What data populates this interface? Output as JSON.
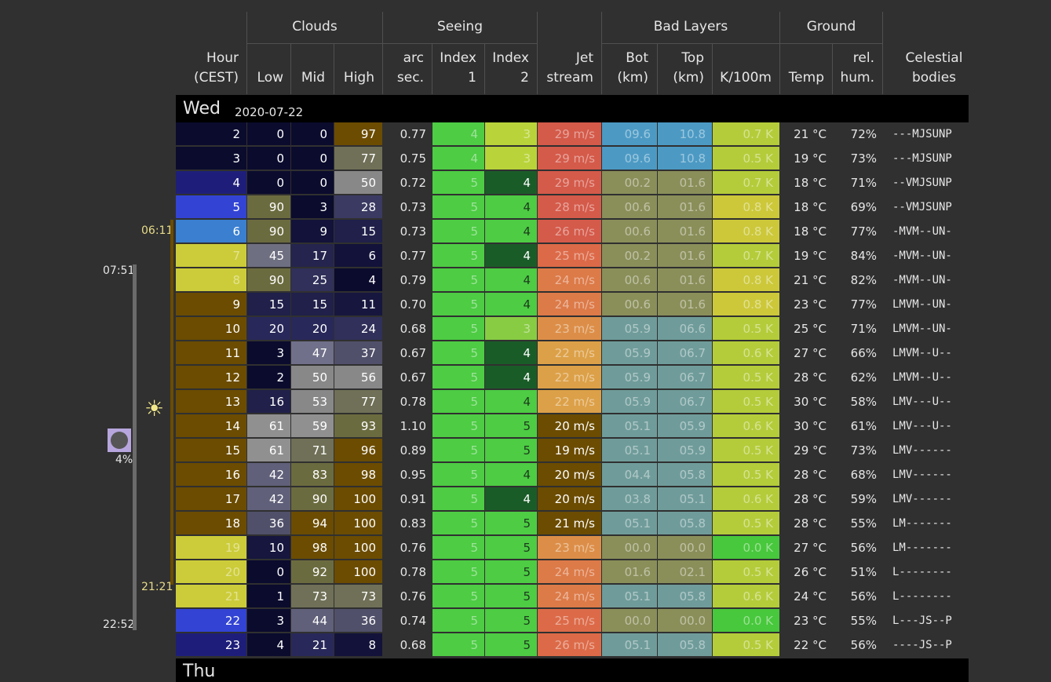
{
  "header": {
    "groups": [
      "Clouds",
      "Seeing",
      "Bad Layers",
      "Ground"
    ],
    "columns": {
      "hour": [
        "Hour",
        "(CEST)"
      ],
      "low": "Low",
      "mid": "Mid",
      "high": "High",
      "arc": [
        "arc",
        "sec."
      ],
      "index1": [
        "Index",
        "1"
      ],
      "index2": [
        "Index",
        "2"
      ],
      "jet": [
        "Jet",
        "stream"
      ],
      "bot": [
        "Bot",
        "(km)"
      ],
      "top": [
        "Top",
        "(km)"
      ],
      "k": "K/100m",
      "temp": "Temp",
      "hum": [
        "rel.",
        "hum."
      ],
      "celestial": [
        "Celestial",
        "bodies"
      ]
    }
  },
  "day": {
    "name": "Wed",
    "date": "2020-07-22"
  },
  "next_day": "Thu",
  "timeline": {
    "sunrise": "06:11",
    "sunset": "21:21",
    "moonrise": "07:51",
    "moonset": "22:52",
    "moon_illumination": "4%",
    "sun_icon": "sun-icon",
    "moon_icon": "moon-phase-icon"
  },
  "colors": {
    "night": "#0b0b2e",
    "deep_twilight": "#1e1e7a",
    "twilight": "#3344d4",
    "civil": "#3a7fd0",
    "dawn": "#cccc3a",
    "day": "#6b4c00",
    "seeing_green": "#4dcc44",
    "seeing_dark": "#1a5c28",
    "seeing_lime": "#b8d43a",
    "jet_red": "#d45a4a",
    "jet_orange": "#dca048",
    "jet_brown": "#6b4c00",
    "layer_blue": "#4c9ac4",
    "layer_teal": "#6f9c9a",
    "layer_olive": "#8a8f5a",
    "k_lime": "#b4cc3a",
    "k_yellow": "#ccc83a",
    "k_green": "#48c83c"
  },
  "rows": [
    {
      "hour": "2",
      "hc": "#0b0b2e",
      "low": "0",
      "lc": "#0b0b2e",
      "mid": "0",
      "mc": "#0b0b2e",
      "high": "97",
      "hic": "#6b4c00",
      "arc": "0.77",
      "i1": "4",
      "i1c": "#4dcc44",
      "i2": "3",
      "i2c": "#b8d43a",
      "jet": "29 m/s",
      "jc": "#d45a4a",
      "bot": "09.6",
      "bc": "#4c9ac4",
      "top": "10.8",
      "tc": "#4c9ac4",
      "k": "0.7 K",
      "kc": "#b4cc3a",
      "temp": "21 °C",
      "hum": "72%",
      "cel": "---MJSUNP"
    },
    {
      "hour": "3",
      "hc": "#0b0b2e",
      "low": "0",
      "lc": "#0b0b2e",
      "mid": "0",
      "mc": "#0b0b2e",
      "high": "77",
      "hic": "#707058",
      "arc": "0.75",
      "i1": "4",
      "i1c": "#4dcc44",
      "i2": "3",
      "i2c": "#b8d43a",
      "jet": "29 m/s",
      "jc": "#d45a4a",
      "bot": "09.6",
      "bc": "#4c9ac4",
      "top": "10.8",
      "tc": "#4c9ac4",
      "k": "0.5 K",
      "kc": "#b4cc3a",
      "temp": "19 °C",
      "hum": "73%",
      "cel": "---MJSUNP"
    },
    {
      "hour": "4",
      "hc": "#1e1e7a",
      "low": "0",
      "lc": "#0b0b2e",
      "mid": "0",
      "mc": "#0b0b2e",
      "high": "50",
      "hic": "#888888",
      "arc": "0.72",
      "i1": "5",
      "i1c": "#4dcc44",
      "i2": "4",
      "i2c": "#1a5c28",
      "jet": "29 m/s",
      "jc": "#d45a4a",
      "bot": "00.2",
      "bc": "#8a8f5a",
      "top": "01.6",
      "tc": "#8a8f5a",
      "k": "0.7 K",
      "kc": "#b4cc3a",
      "temp": "18 °C",
      "hum": "71%",
      "cel": "--VMJSUNP"
    },
    {
      "hour": "5",
      "hc": "#3344d4",
      "low": "90",
      "lc": "#6b6b40",
      "mid": "3",
      "mc": "#0b0b2e",
      "high": "28",
      "hic": "#3a3a62",
      "arc": "0.73",
      "i1": "5",
      "i1c": "#4dcc44",
      "i2": "4",
      "i2c": "#4dcc44",
      "jet": "28 m/s",
      "jc": "#d45a4a",
      "bot": "00.6",
      "bc": "#8a8f5a",
      "top": "01.6",
      "tc": "#8a8f5a",
      "k": "0.8 K",
      "kc": "#ccc83a",
      "temp": "18 °C",
      "hum": "69%",
      "cel": "--VMJSUNP"
    },
    {
      "hour": "6",
      "hc": "#3a7fd0",
      "low": "90",
      "lc": "#6b6b40",
      "mid": "9",
      "mc": "#12123a",
      "high": "15",
      "hic": "#20204a",
      "arc": "0.73",
      "i1": "5",
      "i1c": "#4dcc44",
      "i2": "4",
      "i2c": "#4dcc44",
      "jet": "26 m/s",
      "jc": "#d45a4a",
      "bot": "00.6",
      "bc": "#8a8f5a",
      "top": "01.6",
      "tc": "#8a8f5a",
      "k": "0.8 K",
      "kc": "#ccc83a",
      "temp": "18 °C",
      "hum": "77%",
      "cel": "-MVM--UN-"
    },
    {
      "hour": "7",
      "hc": "#cccc3a",
      "low": "45",
      "lc": "#6f6f82",
      "mid": "17",
      "mc": "#24244e",
      "high": "6",
      "hic": "#12123a",
      "arc": "0.77",
      "i1": "5",
      "i1c": "#4dcc44",
      "i2": "4",
      "i2c": "#1a5c28",
      "jet": "25 m/s",
      "jc": "#dc6a48",
      "bot": "00.2",
      "bc": "#8a8f5a",
      "top": "01.6",
      "tc": "#8a8f5a",
      "k": "0.7 K",
      "kc": "#b4cc3a",
      "temp": "19 °C",
      "hum": "84%",
      "cel": "-MVM--UN-"
    },
    {
      "hour": "8",
      "hc": "#cccc3a",
      "low": "90",
      "lc": "#6b6b40",
      "mid": "25",
      "mc": "#30305a",
      "high": "4",
      "hic": "#0b0b2e",
      "arc": "0.79",
      "i1": "5",
      "i1c": "#4dcc44",
      "i2": "4",
      "i2c": "#4dcc44",
      "jet": "24 m/s",
      "jc": "#dc7a48",
      "bot": "00.6",
      "bc": "#8a8f5a",
      "top": "01.6",
      "tc": "#8a8f5a",
      "k": "0.8 K",
      "kc": "#ccc83a",
      "temp": "21 °C",
      "hum": "82%",
      "cel": "-MVM--UN-"
    },
    {
      "hour": "9",
      "hc": "#6b4c00",
      "low": "15",
      "lc": "#20204a",
      "mid": "15",
      "mc": "#20204a",
      "high": "11",
      "hic": "#16163e",
      "arc": "0.70",
      "i1": "5",
      "i1c": "#4dcc44",
      "i2": "4",
      "i2c": "#4dcc44",
      "jet": "24 m/s",
      "jc": "#dc7a48",
      "bot": "00.6",
      "bc": "#8a8f5a",
      "top": "01.6",
      "tc": "#8a8f5a",
      "k": "0.8 K",
      "kc": "#ccc83a",
      "temp": "23 °C",
      "hum": "77%",
      "cel": "LMVM--UN-"
    },
    {
      "hour": "10",
      "hc": "#6b4c00",
      "low": "20",
      "lc": "#28285a",
      "mid": "20",
      "mc": "#28285a",
      "high": "24",
      "hic": "#30305a",
      "arc": "0.68",
      "i1": "5",
      "i1c": "#4dcc44",
      "i2": "3",
      "i2c": "#88cc44",
      "jet": "23 m/s",
      "jc": "#dc8e48",
      "bot": "05.9",
      "bc": "#6f9c9a",
      "top": "06.6",
      "tc": "#6f9c9a",
      "k": "0.5 K",
      "kc": "#b4cc3a",
      "temp": "25 °C",
      "hum": "71%",
      "cel": "LMVM--UN-"
    },
    {
      "hour": "11",
      "hc": "#6b4c00",
      "low": "3",
      "lc": "#0b0b2e",
      "mid": "47",
      "mc": "#70708a",
      "high": "37",
      "hic": "#50506a",
      "arc": "0.67",
      "i1": "5",
      "i1c": "#4dcc44",
      "i2": "4",
      "i2c": "#1a5c28",
      "jet": "22 m/s",
      "jc": "#dca048",
      "bot": "05.9",
      "bc": "#6f9c9a",
      "top": "06.7",
      "tc": "#6f9c9a",
      "k": "0.6 K",
      "kc": "#b4cc3a",
      "temp": "27 °C",
      "hum": "66%",
      "cel": "LMVM--U--"
    },
    {
      "hour": "12",
      "hc": "#6b4c00",
      "low": "2",
      "lc": "#0b0b2e",
      "mid": "50",
      "mc": "#888888",
      "high": "56",
      "hic": "#888888",
      "arc": "0.67",
      "i1": "5",
      "i1c": "#4dcc44",
      "i2": "4",
      "i2c": "#1a5c28",
      "jet": "22 m/s",
      "jc": "#dca048",
      "bot": "05.9",
      "bc": "#6f9c9a",
      "top": "06.7",
      "tc": "#6f9c9a",
      "k": "0.5 K",
      "kc": "#b4cc3a",
      "temp": "28 °C",
      "hum": "62%",
      "cel": "LMVM--U--"
    },
    {
      "hour": "13",
      "hc": "#6b4c00",
      "low": "16",
      "lc": "#20204a",
      "mid": "53",
      "mc": "#888888",
      "high": "77",
      "hic": "#707058",
      "arc": "0.78",
      "i1": "5",
      "i1c": "#4dcc44",
      "i2": "4",
      "i2c": "#4dcc44",
      "jet": "22 m/s",
      "jc": "#dca048",
      "bot": "05.9",
      "bc": "#6f9c9a",
      "top": "06.7",
      "tc": "#6f9c9a",
      "k": "0.5 K",
      "kc": "#b4cc3a",
      "temp": "30 °C",
      "hum": "58%",
      "cel": "LMV---U--"
    },
    {
      "hour": "14",
      "hc": "#6b4c00",
      "low": "61",
      "lc": "#909090",
      "mid": "59",
      "mc": "#909090",
      "high": "93",
      "hic": "#6b6b40",
      "arc": "1.10",
      "i1": "5",
      "i1c": "#4dcc44",
      "i2": "5",
      "i2c": "#4dcc44",
      "jet": "20 m/s",
      "jc": "#6b4c00",
      "bot": "05.1",
      "bc": "#6f9c9a",
      "top": "05.9",
      "tc": "#6f9c9a",
      "k": "0.6 K",
      "kc": "#b4cc3a",
      "temp": "30 °C",
      "hum": "61%",
      "cel": "LMV---U--"
    },
    {
      "hour": "15",
      "hc": "#6b4c00",
      "low": "61",
      "lc": "#909090",
      "mid": "71",
      "mc": "#707058",
      "high": "96",
      "hic": "#6b4c00",
      "arc": "0.89",
      "i1": "5",
      "i1c": "#4dcc44",
      "i2": "5",
      "i2c": "#4dcc44",
      "jet": "19 m/s",
      "jc": "#6b4c00",
      "bot": "05.1",
      "bc": "#6f9c9a",
      "top": "05.9",
      "tc": "#6f9c9a",
      "k": "0.5 K",
      "kc": "#b4cc3a",
      "temp": "29 °C",
      "hum": "73%",
      "cel": "LMV------"
    },
    {
      "hour": "16",
      "hc": "#6b4c00",
      "low": "42",
      "lc": "#60607a",
      "mid": "83",
      "mc": "#6b6b40",
      "high": "98",
      "hic": "#6b4c00",
      "arc": "0.95",
      "i1": "5",
      "i1c": "#4dcc44",
      "i2": "4",
      "i2c": "#4dcc44",
      "jet": "20 m/s",
      "jc": "#6b4c00",
      "bot": "04.4",
      "bc": "#6f9c9a",
      "top": "05.8",
      "tc": "#6f9c9a",
      "k": "0.5 K",
      "kc": "#b4cc3a",
      "temp": "28 °C",
      "hum": "68%",
      "cel": "LMV------"
    },
    {
      "hour": "17",
      "hc": "#6b4c00",
      "low": "42",
      "lc": "#60607a",
      "mid": "90",
      "mc": "#6b6b40",
      "high": "100",
      "hic": "#6b4c00",
      "arc": "0.91",
      "i1": "5",
      "i1c": "#4dcc44",
      "i2": "4",
      "i2c": "#1a5c28",
      "jet": "20 m/s",
      "jc": "#6b4c00",
      "bot": "03.8",
      "bc": "#6f9c9a",
      "top": "05.1",
      "tc": "#6f9c9a",
      "k": "0.6 K",
      "kc": "#b4cc3a",
      "temp": "28 °C",
      "hum": "59%",
      "cel": "LMV------"
    },
    {
      "hour": "18",
      "hc": "#6b4c00",
      "low": "36",
      "lc": "#50506a",
      "mid": "94",
      "mc": "#6b4c00",
      "high": "100",
      "hic": "#6b4c00",
      "arc": "0.83",
      "i1": "5",
      "i1c": "#4dcc44",
      "i2": "5",
      "i2c": "#4dcc44",
      "jet": "21 m/s",
      "jc": "#6b4c00",
      "bot": "05.1",
      "bc": "#6f9c9a",
      "top": "05.8",
      "tc": "#6f9c9a",
      "k": "0.5 K",
      "kc": "#b4cc3a",
      "temp": "28 °C",
      "hum": "55%",
      "cel": "LM-------"
    },
    {
      "hour": "19",
      "hc": "#cccc3a",
      "low": "10",
      "lc": "#16163e",
      "mid": "98",
      "mc": "#6b4c00",
      "high": "100",
      "hic": "#6b4c00",
      "arc": "0.76",
      "i1": "5",
      "i1c": "#4dcc44",
      "i2": "5",
      "i2c": "#4dcc44",
      "jet": "23 m/s",
      "jc": "#dc8e48",
      "bot": "00.0",
      "bc": "#8a8f5a",
      "top": "00.0",
      "tc": "#8a8f5a",
      "k": "0.0 K",
      "kc": "#48c83c",
      "temp": "27 °C",
      "hum": "56%",
      "cel": "LM-------"
    },
    {
      "hour": "20",
      "hc": "#cccc3a",
      "low": "0",
      "lc": "#0b0b2e",
      "mid": "92",
      "mc": "#6b6b40",
      "high": "100",
      "hic": "#6b4c00",
      "arc": "0.78",
      "i1": "5",
      "i1c": "#4dcc44",
      "i2": "5",
      "i2c": "#4dcc44",
      "jet": "24 m/s",
      "jc": "#dc7a48",
      "bot": "01.6",
      "bc": "#8a8f5a",
      "top": "02.1",
      "tc": "#8a8f5a",
      "k": "0.5 K",
      "kc": "#b4cc3a",
      "temp": "26 °C",
      "hum": "51%",
      "cel": "L--------"
    },
    {
      "hour": "21",
      "hc": "#cccc3a",
      "low": "1",
      "lc": "#0b0b2e",
      "mid": "73",
      "mc": "#707058",
      "high": "73",
      "hic": "#707058",
      "arc": "0.76",
      "i1": "5",
      "i1c": "#4dcc44",
      "i2": "5",
      "i2c": "#4dcc44",
      "jet": "24 m/s",
      "jc": "#dc7a48",
      "bot": "05.1",
      "bc": "#6f9c9a",
      "top": "05.8",
      "tc": "#6f9c9a",
      "k": "0.6 K",
      "kc": "#b4cc3a",
      "temp": "24 °C",
      "hum": "56%",
      "cel": "L--------"
    },
    {
      "hour": "22",
      "hc": "#3344d4",
      "low": "3",
      "lc": "#0b0b2e",
      "mid": "44",
      "mc": "#60607a",
      "high": "36",
      "hic": "#50506a",
      "arc": "0.74",
      "i1": "5",
      "i1c": "#4dcc44",
      "i2": "5",
      "i2c": "#4dcc44",
      "jet": "25 m/s",
      "jc": "#dc6a48",
      "bot": "00.0",
      "bc": "#8a8f5a",
      "top": "00.0",
      "tc": "#8a8f5a",
      "k": "0.0 K",
      "kc": "#48c83c",
      "temp": "23 °C",
      "hum": "55%",
      "cel": "L---JS--P"
    },
    {
      "hour": "23",
      "hc": "#1e1e7a",
      "low": "4",
      "lc": "#0b0b2e",
      "mid": "21",
      "mc": "#28285a",
      "high": "8",
      "hic": "#12123a",
      "arc": "0.68",
      "i1": "5",
      "i1c": "#4dcc44",
      "i2": "5",
      "i2c": "#4dcc44",
      "jet": "26 m/s",
      "jc": "#dc6a48",
      "bot": "05.1",
      "bc": "#6f9c9a",
      "top": "05.8",
      "tc": "#6f9c9a",
      "k": "0.5 K",
      "kc": "#b4cc3a",
      "temp": "22 °C",
      "hum": "56%",
      "cel": "----JS--P"
    }
  ]
}
